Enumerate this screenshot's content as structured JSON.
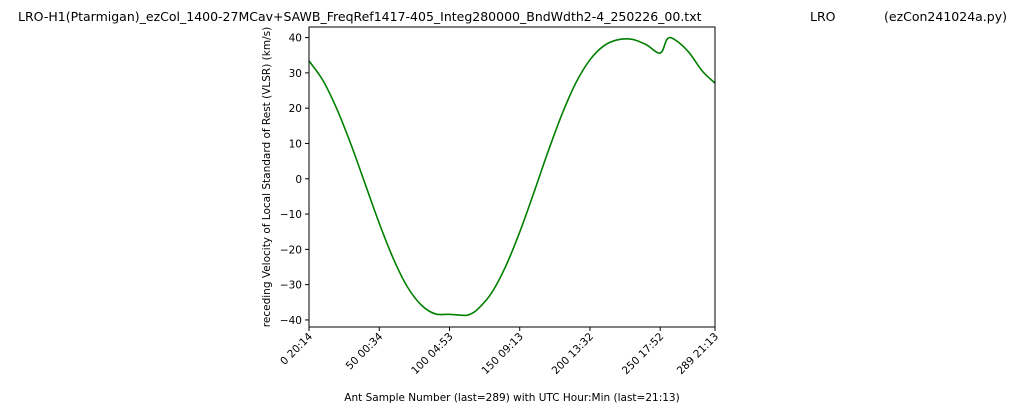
{
  "figure_title": {
    "main": "LRO-H1(Ptarmigan)_ezCol_1400-27MCav+SAWB_FreqRef1417-405_Integ280000_BndWdth2-4_250226_00.txt",
    "site": "LRO",
    "program": "(ezCon241024a.py)"
  },
  "chart_data": {
    "type": "line",
    "title": "",
    "xlabel": "Ant Sample Number (last=289) with UTC Hour:Min (last=21:13)",
    "ylabel": "receding Velocity of Local Standard of Rest (VLSR) (km/s)",
    "xlim": [
      0,
      289
    ],
    "ylim": [
      -42,
      43
    ],
    "grid": false,
    "x_ticks": [
      {
        "value": 0,
        "label": "0  20:14"
      },
      {
        "value": 50,
        "label": "50  00:34"
      },
      {
        "value": 100,
        "label": "100  04:53"
      },
      {
        "value": 150,
        "label": "150  09:13"
      },
      {
        "value": 200,
        "label": "200  13:32"
      },
      {
        "value": 250,
        "label": "250  17:52"
      },
      {
        "value": 289,
        "label": "289  21:13"
      }
    ],
    "y_ticks": [
      {
        "value": 40,
        "label": "40"
      },
      {
        "value": 30,
        "label": "30"
      },
      {
        "value": 20,
        "label": "20"
      },
      {
        "value": 10,
        "label": "10"
      },
      {
        "value": 0,
        "label": "0"
      },
      {
        "value": -10,
        "label": "−10"
      },
      {
        "value": -20,
        "label": "−20"
      },
      {
        "value": -30,
        "label": "−30"
      },
      {
        "value": -40,
        "label": "−40"
      }
    ],
    "series": [
      {
        "color": "#008000",
        "x": [
          0,
          10,
          20,
          30,
          40,
          50,
          60,
          70,
          80,
          90,
          100,
          110,
          114,
          120,
          130,
          140,
          150,
          160,
          170,
          180,
          190,
          200,
          210,
          220,
          230,
          240,
          250,
          255,
          260,
          270,
          280,
          289
        ],
        "y": [
          33.4,
          27.8,
          19.6,
          9.6,
          -1.5,
          -12.6,
          -22.6,
          -30.6,
          -35.8,
          -38.3,
          -38.4,
          -38.7,
          -38.5,
          -37.0,
          -32.3,
          -24.8,
          -15.1,
          -4.0,
          7.5,
          18.2,
          27.2,
          33.7,
          37.7,
          39.4,
          39.5,
          38.0,
          35.6,
          39.6,
          39.5,
          36.0,
          30.5,
          27.1
        ]
      }
    ]
  }
}
